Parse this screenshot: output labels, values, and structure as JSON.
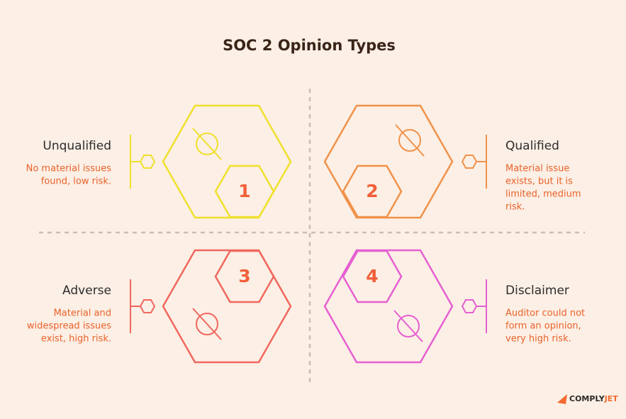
{
  "title": "SOC 2 Opinion Types",
  "quadrants": [
    {
      "number": "1",
      "label": "Unqualified",
      "description": [
        "No material issues",
        "found, low risk."
      ],
      "color": "#f0e02c"
    },
    {
      "number": "2",
      "label": "Qualified",
      "description": [
        "Material issue",
        "exists, but it is",
        "limited, medium",
        "risk."
      ],
      "color": "#f0924a"
    },
    {
      "number": "3",
      "label": "Adverse",
      "description": [
        "Material and",
        "widespread issues",
        "exist, high risk."
      ],
      "color": "#f0675e"
    },
    {
      "number": "4",
      "label": "Disclaimer",
      "description": [
        "Auditor could not",
        "form an opinion,",
        "very high risk."
      ],
      "color": "#e65fd2"
    }
  ],
  "brand": {
    "first": "COMPLY",
    "second": "JET"
  }
}
